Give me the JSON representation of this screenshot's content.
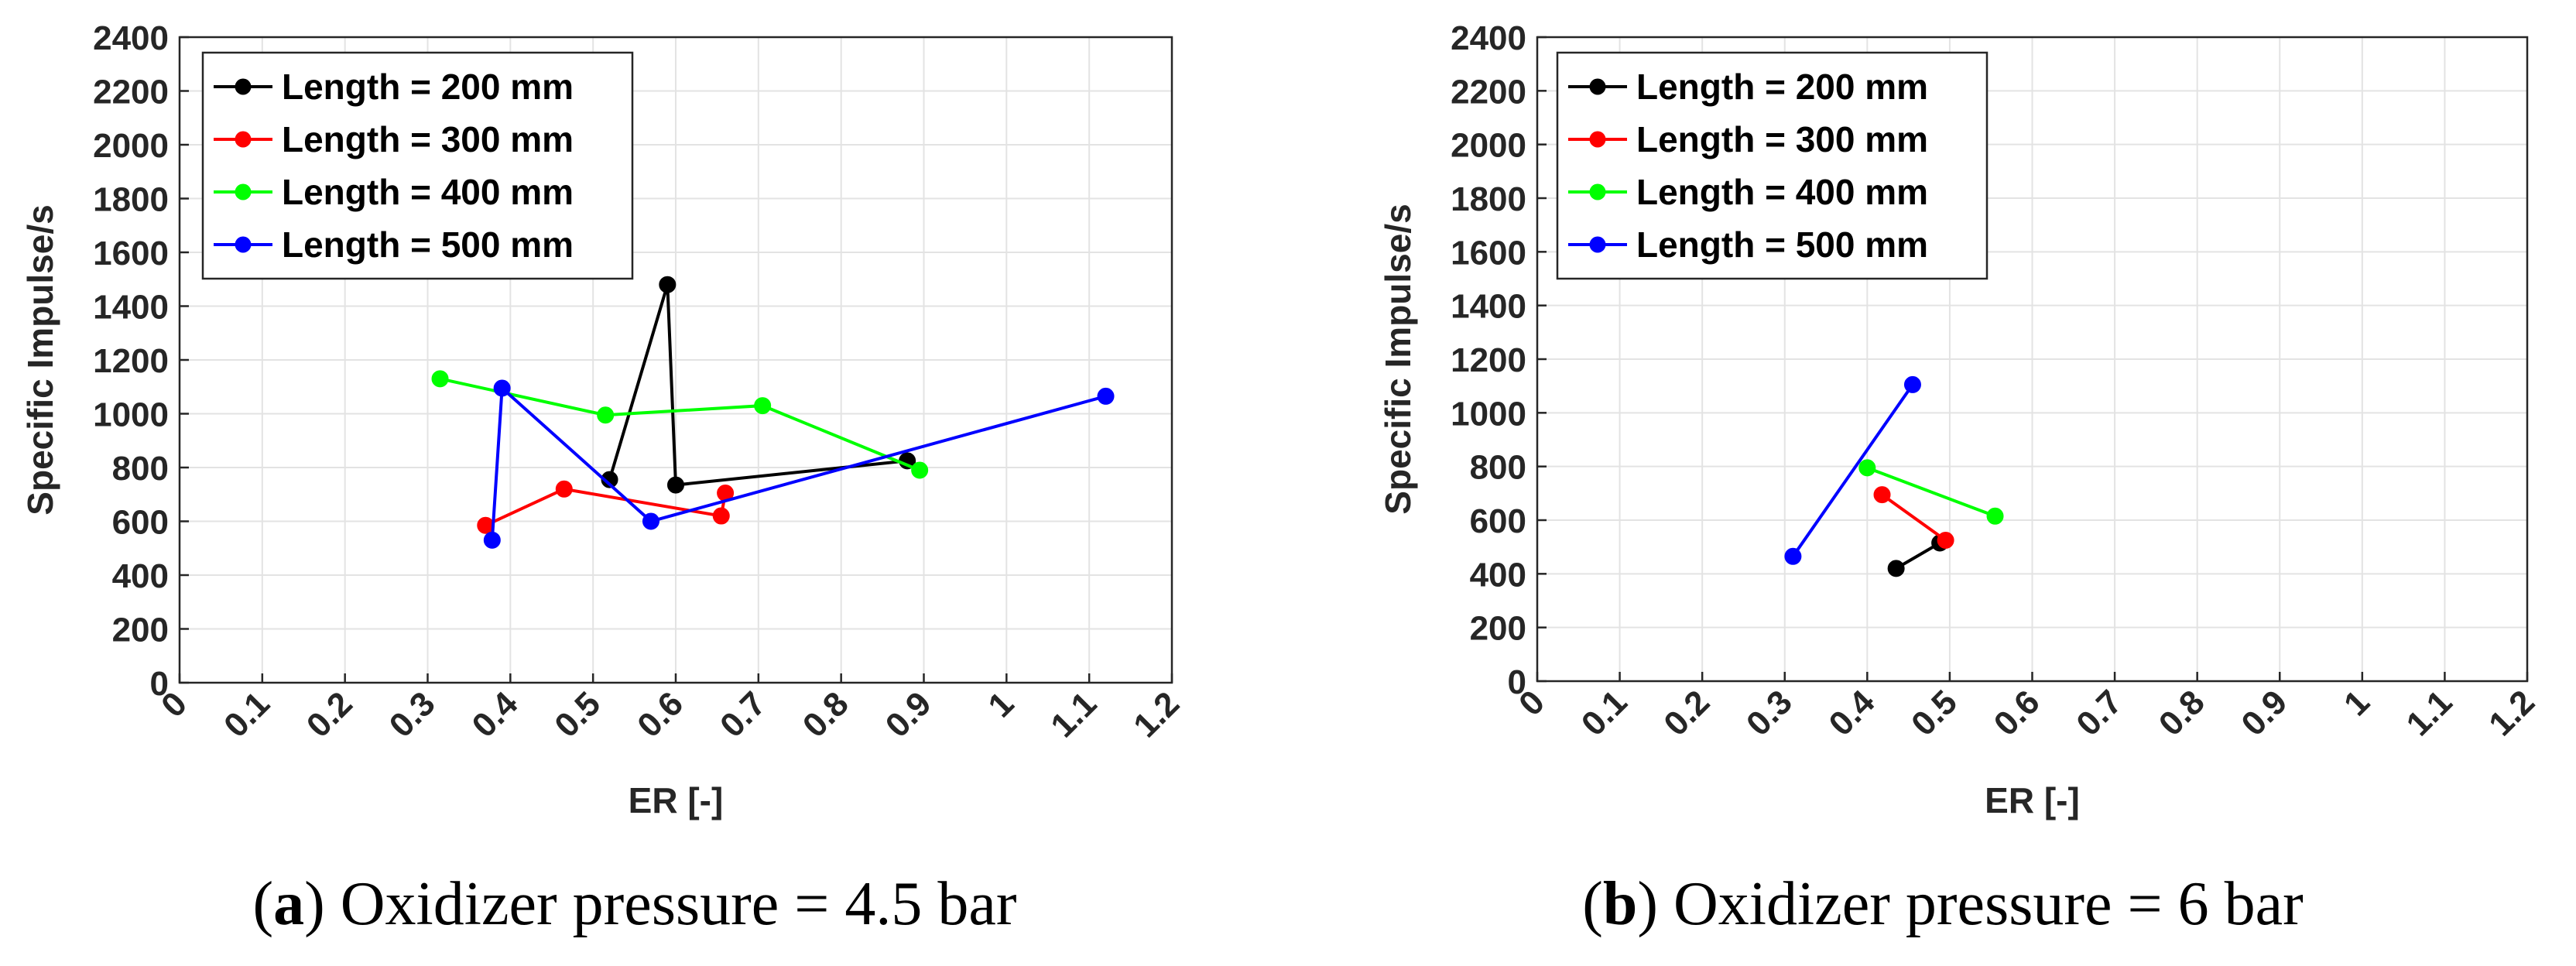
{
  "chart_data": [
    {
      "type": "line",
      "caption_letter": "a",
      "caption_text": ") Oxidizer pressure = 4.5 bar",
      "caption_open": "(",
      "xlabel": "ER [-]",
      "ylabel": "Specific Impulse/s",
      "xlim": [
        0,
        1.2
      ],
      "ylim": [
        0,
        2400
      ],
      "xticks": [
        "0",
        "0.1",
        "0.2",
        "0.3",
        "0.4",
        "0.5",
        "0.6",
        "0.7",
        "0.8",
        "0.9",
        "1",
        "1.1",
        "1.2"
      ],
      "yticks": [
        "0",
        "200",
        "400",
        "600",
        "800",
        "1000",
        "1200",
        "1400",
        "1600",
        "1800",
        "2000",
        "2200",
        "2400"
      ],
      "grid": true,
      "legend_position": "top-left",
      "series": [
        {
          "name": "Length = 200 mm",
          "color": "#000000",
          "x": [
            0.52,
            0.59,
            0.6,
            0.88
          ],
          "y": [
            755,
            1480,
            735,
            825
          ]
        },
        {
          "name": "Length = 300 mm",
          "color": "#ff0000",
          "x": [
            0.66,
            0.655,
            0.465,
            0.37
          ],
          "y": [
            705,
            620,
            720,
            585
          ]
        },
        {
          "name": "Length = 400 mm",
          "color": "#00ff00",
          "x": [
            0.315,
            0.515,
            0.705,
            0.895
          ],
          "y": [
            1130,
            995,
            1030,
            790
          ]
        },
        {
          "name": "Length = 500 mm",
          "color": "#0000ff",
          "x": [
            1.12,
            0.57,
            0.39,
            0.378
          ],
          "y": [
            1065,
            600,
            1095,
            530
          ]
        }
      ]
    },
    {
      "type": "line",
      "caption_letter": "b",
      "caption_text": ") Oxidizer pressure = 6 bar",
      "caption_open": "(",
      "xlabel": "ER [-]",
      "ylabel": "Specific Impulse/s",
      "xlim": [
        0,
        1.2
      ],
      "ylim": [
        0,
        2400
      ],
      "xticks": [
        "0",
        "0.1",
        "0.2",
        "0.3",
        "0.4",
        "0.5",
        "0.6",
        "0.7",
        "0.8",
        "0.9",
        "1",
        "1.1",
        "1.2"
      ],
      "yticks": [
        "0",
        "200",
        "400",
        "600",
        "800",
        "1000",
        "1200",
        "1400",
        "1600",
        "1800",
        "2000",
        "2200",
        "2400"
      ],
      "grid": true,
      "legend_position": "top-left",
      "series": [
        {
          "name": "Length = 200 mm",
          "color": "#000000",
          "x": [
            0.435,
            0.488
          ],
          "y": [
            420,
            515
          ]
        },
        {
          "name": "Length = 300 mm",
          "color": "#ff0000",
          "x": [
            0.418,
            0.495
          ],
          "y": [
            695,
            525
          ]
        },
        {
          "name": "Length = 400 mm",
          "color": "#00ff00",
          "x": [
            0.4,
            0.555
          ],
          "y": [
            795,
            615
          ]
        },
        {
          "name": "Length = 500 mm",
          "color": "#0000ff",
          "x": [
            0.31,
            0.455
          ],
          "y": [
            465,
            1105
          ]
        }
      ]
    }
  ]
}
